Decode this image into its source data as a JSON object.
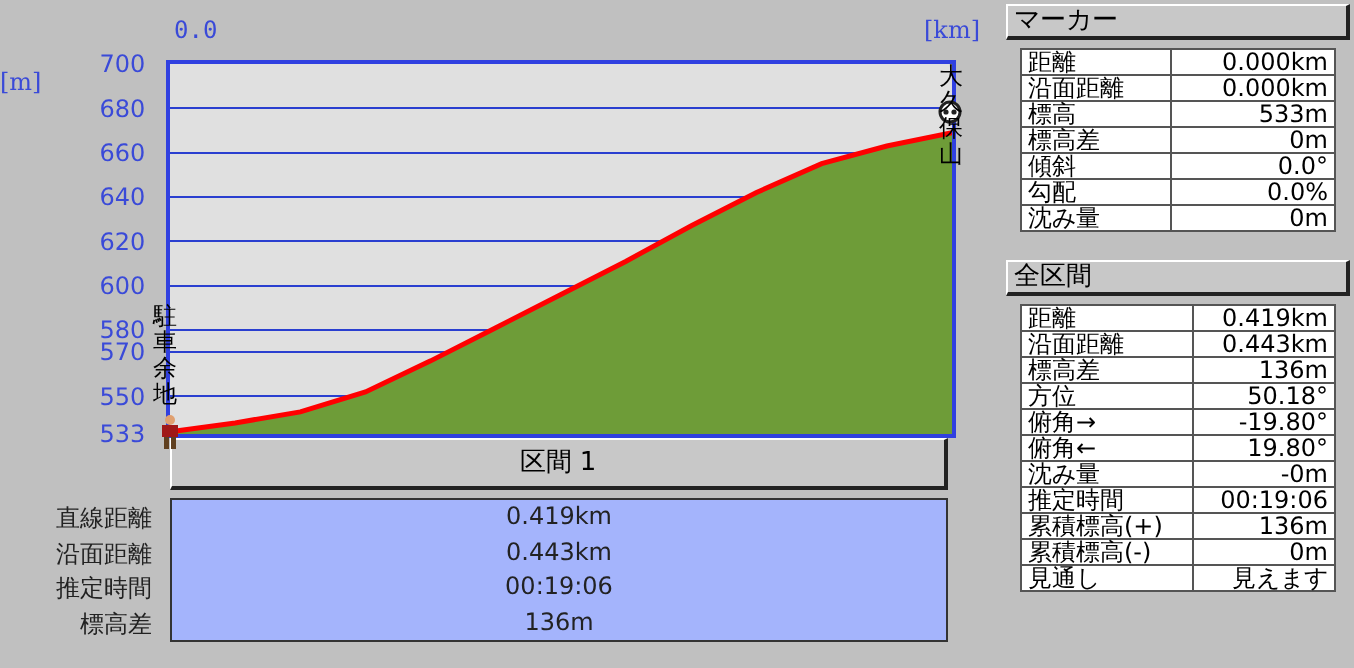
{
  "chart_data": [
    {
      "type": "area",
      "xlabel": "[km]",
      "ylabel": "[m]",
      "categories": [
        null,
        null,
        null,
        null,
        null,
        null,
        null,
        null,
        null,
        null,
        null,
        null,
        null
      ],
      "series": [
        {
          "type": "area",
          "color": "#6e9c38",
          "values": [
            534,
            538,
            543,
            552,
            566,
            581,
            596,
            611,
            627,
            642,
            655,
            663,
            669
          ]
        },
        {
          "type": "line",
          "color": "#ff0000",
          "values": [
            534,
            538,
            543,
            552,
            566,
            581,
            596,
            611,
            627,
            642,
            655,
            663,
            669
          ]
        }
      ],
      "ylim": [
        533,
        700
      ],
      "yticks": [
        533,
        550,
        570,
        580,
        600,
        620,
        640,
        660,
        680,
        700
      ],
      "grid": "y",
      "legend": false,
      "marker": "none",
      "line_style": "solid",
      "annotations": [
        "0.0",
        "駐車余地",
        "大久保山"
      ]
    },
    {
      "type": "other",
      "title": "区間 1",
      "annotations": [
        "直線距離",
        "0.419km",
        "沿面距離",
        "0.443km",
        "推定時間",
        "00:19:06",
        "標高差",
        "136m"
      ]
    },
    {
      "type": "other",
      "title": "マーカー",
      "annotations": [
        "距離",
        "0.000km",
        "沿面距離",
        "0.000km",
        "標高",
        "533m",
        "標高差",
        "0m",
        "傾斜",
        "0.0°",
        "勾配",
        "0.0%",
        "沈み量",
        "0m"
      ]
    },
    {
      "type": "other",
      "title": "全区間",
      "annotations": [
        "距離",
        "0.419km",
        "沿面距離",
        "0.443km",
        "標高差",
        "136m",
        "方位",
        "50.18°",
        "俯角→",
        "-19.80°",
        "俯角←",
        "19.80°",
        "沈み量",
        "-0m",
        "推定時間",
        "00:19:06",
        "累積標高(+)",
        "136m",
        "累積標高(-)",
        "0m",
        "見通し",
        "見えます"
      ]
    }
  ]
}
